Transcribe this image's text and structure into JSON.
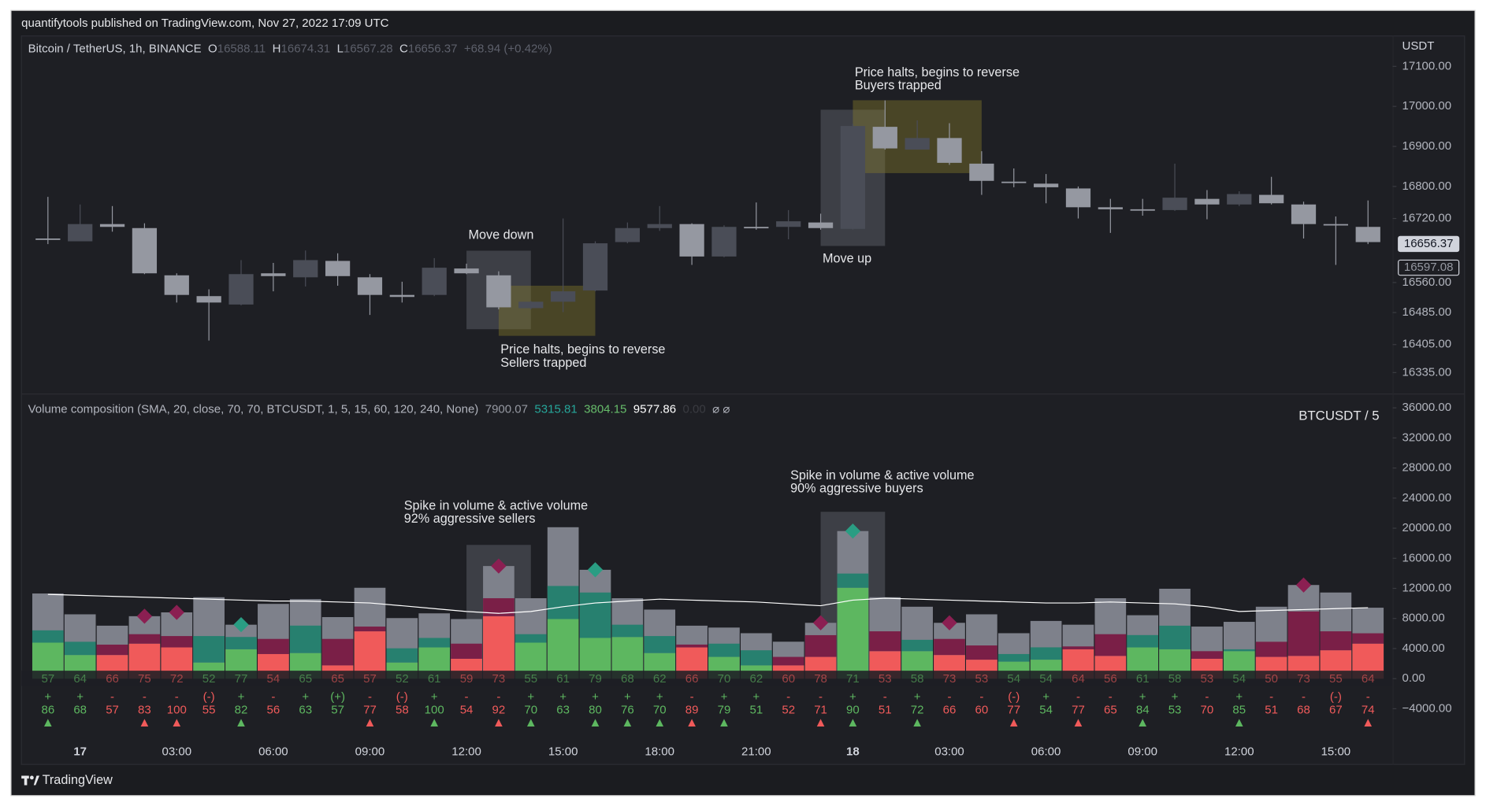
{
  "header": {
    "publisher": "quantifytools published on TradingView.com, Nov 27, 2022 17:09 UTC"
  },
  "footer": {
    "brand": "TradingView"
  },
  "chart_data": [
    {
      "type": "candlestick",
      "title": "Bitcoin / TetherUS, 1h, BINANCE",
      "ohlc_legend": [
        {
          "label": "O",
          "value": "16588.11"
        },
        {
          "label": "H",
          "value": "16674.31"
        },
        {
          "label": "L",
          "value": "16567.28"
        },
        {
          "label": "C",
          "value": "16656.37"
        }
      ],
      "change": "+68.94 (+0.42%)",
      "currency": "USDT",
      "open": [
        16670,
        16663,
        16706,
        16696,
        16578,
        16526,
        16505,
        16583,
        16573,
        16614,
        16573,
        16529,
        16529,
        16595,
        16578,
        16496,
        16512,
        16540,
        16661,
        16696,
        16706,
        16625,
        16699,
        16699,
        16710,
        16694,
        16949,
        16892,
        16921,
        16857,
        16812,
        16807,
        16795,
        16748,
        16743,
        16741,
        16769,
        16755,
        16779,
        16755,
        16706,
        16699
      ],
      "high": [
        16774,
        16755,
        16751,
        16708,
        16583,
        16543,
        16616,
        16609,
        16640,
        16633,
        16581,
        16562,
        16621,
        16607,
        16588,
        16514,
        16720,
        16663,
        16710,
        16751,
        16708,
        16703,
        16760,
        16741,
        16732,
        16956,
        17015,
        16965,
        16958,
        16888,
        16845,
        16831,
        16800,
        16769,
        16769,
        16857,
        16791,
        16788,
        16824,
        16762,
        16725,
        16765
      ],
      "low": [
        16656,
        16663,
        16687,
        16581,
        16510,
        16415,
        16503,
        16538,
        16550,
        16552,
        16479,
        16510,
        16526,
        16581,
        16493,
        16493,
        16486,
        16538,
        16658,
        16689,
        16604,
        16623,
        16692,
        16668,
        16692,
        16692,
        16892,
        16892,
        16854,
        16779,
        16798,
        16758,
        16720,
        16684,
        16727,
        16739,
        16718,
        16751,
        16755,
        16670,
        16604,
        16656
      ],
      "close": [
        16668,
        16706,
        16699,
        16583,
        16529,
        16510,
        16581,
        16576,
        16616,
        16576,
        16529,
        16524,
        16597,
        16583,
        16498,
        16512,
        16538,
        16658,
        16696,
        16706,
        16625,
        16699,
        16696,
        16713,
        16696,
        16951,
        16895,
        16921,
        16859,
        16814,
        16810,
        16798,
        16748,
        16743,
        16741,
        16772,
        16755,
        16781,
        16758,
        16706,
        16703,
        16661
      ],
      "up_color": "#4a4d57",
      "down_color": "#9598a1",
      "ylim": [
        16285,
        17176
      ],
      "yticks": [
        {
          "value": 17100,
          "label": "17100.00"
        },
        {
          "value": 17000,
          "label": "17000.00"
        },
        {
          "value": 16900,
          "label": "16900.00"
        },
        {
          "value": 16800,
          "label": "16800.00"
        },
        {
          "value": 16720,
          "label": "16720.00"
        },
        {
          "value": 16560,
          "label": "16560.00"
        },
        {
          "value": 16485,
          "label": "16485.00"
        },
        {
          "value": 16405,
          "label": "16405.00"
        },
        {
          "value": 16335,
          "label": "16335.00"
        }
      ],
      "price_markers": [
        16656.37,
        16597.08
      ],
      "annotations": [
        {
          "lines": [
            "Move down"
          ]
        },
        {
          "lines": [
            "Price halts, begins to reverse",
            "Sellers trapped"
          ]
        },
        {
          "lines": [
            "Move up"
          ]
        },
        {
          "lines": [
            "Price halts, begins to reverse",
            "Buyers trapped"
          ]
        }
      ]
    },
    {
      "type": "stacked_bar",
      "title": "Volume composition (SMA, 20, close, 70, 70, BTCUSDT, 1, 5, 15, 60, 120, 240, None)",
      "legend_values": [
        {
          "text": "7900.07",
          "color": "#9598a1"
        },
        {
          "text": "5315.81",
          "color": "#26a69a"
        },
        {
          "text": "3804.15",
          "color": "#66bb6a"
        },
        {
          "text": "9577.86",
          "color": "#ffffff"
        },
        {
          "text": "0.00",
          "color": "#3a3b41"
        },
        {
          "text": "⌀ ⌀",
          "color": "#b2b5be"
        }
      ],
      "symbol_label": "BTCUSDT / 5",
      "categories": [
        null,
        "17",
        null,
        null,
        "03:00",
        null,
        null,
        "06:00",
        null,
        null,
        "09:00",
        null,
        null,
        "12:00",
        null,
        null,
        "15:00",
        null,
        null,
        "18:00",
        null,
        null,
        "21:00",
        null,
        null,
        "18",
        null,
        null,
        "03:00",
        null,
        null,
        "06:00",
        null,
        null,
        "09:00",
        null,
        null,
        "12:00",
        null,
        null,
        "15:00",
        null
      ],
      "series": [
        {
          "color": "#7e818b",
          "values": [
            11320,
            8550,
            7040,
            8300,
            8810,
            10820,
            7170,
            9940,
            10570,
            8180,
            12080,
            8050,
            8680,
            7920,
            14970,
            10690,
            20130,
            14470,
            10690,
            9180,
            7040,
            6790,
            6040,
            4910,
            7420,
            19620,
            10820,
            9560,
            7420,
            8550,
            6040,
            7670,
            7170,
            10690,
            8430,
            11950,
            6920,
            7550,
            9560,
            12450,
            11450,
            9430
          ]
        },
        {
          "color": "#5db760",
          "values": [
            4780,
            3140,
            null,
            null,
            null,
            2140,
            3900,
            null,
            3400,
            null,
            null,
            2140,
            4150,
            null,
            null,
            4780,
            7920,
            5410,
            5530,
            3400,
            null,
            2890,
            1760,
            null,
            null,
            12080,
            null,
            3650,
            null,
            null,
            2260,
            2520,
            null,
            null,
            4150,
            3900,
            null,
            3650,
            null,
            null,
            null,
            null
          ]
        },
        {
          "color": "#27806f",
          "values": [
            1640,
            1760,
            null,
            null,
            null,
            3520,
            1640,
            null,
            3650,
            null,
            null,
            1890,
            1260,
            null,
            null,
            1130,
            4400,
            6040,
            1640,
            2260,
            null,
            1760,
            2010,
            null,
            null,
            1890,
            null,
            1510,
            null,
            null,
            1010,
            1640,
            null,
            null,
            1640,
            3140,
            null,
            250,
            null,
            null,
            null,
            null
          ]
        },
        {
          "color": "#f05a5a",
          "values": [
            null,
            null,
            3140,
            4650,
            4150,
            null,
            null,
            3270,
            null,
            1760,
            6290,
            null,
            null,
            2640,
            8300,
            null,
            null,
            null,
            null,
            null,
            4150,
            null,
            null,
            1760,
            2890,
            null,
            3650,
            null,
            3140,
            2520,
            null,
            null,
            3900,
            3020,
            null,
            null,
            2640,
            null,
            2890,
            3020,
            3770,
            4650
          ]
        },
        {
          "color": "#7a1f47",
          "values": [
            null,
            null,
            1380,
            1260,
            1510,
            null,
            null,
            2010,
            null,
            3520,
            630,
            null,
            null,
            2010,
            2390,
            null,
            null,
            null,
            null,
            null,
            380,
            null,
            null,
            1130,
            2890,
            null,
            2640,
            null,
            2140,
            1890,
            null,
            null,
            380,
            2890,
            null,
            null,
            1010,
            null,
            2010,
            5910,
            2520,
            1380
          ]
        }
      ],
      "sma": {
        "color": "#ffffff",
        "values": [
          11200,
          11070,
          10940,
          10820,
          10690,
          10570,
          10440,
          10310,
          10310,
          10190,
          10060,
          9690,
          9310,
          8930,
          8680,
          8930,
          9560,
          10060,
          10310,
          10570,
          10440,
          10310,
          10190,
          9940,
          9690,
          10440,
          10690,
          10570,
          10440,
          10310,
          10190,
          10060,
          10060,
          10190,
          10060,
          9940,
          9560,
          8930,
          9060,
          9180,
          9310,
          9430
        ]
      },
      "diamond": [
        false,
        false,
        false,
        true,
        true,
        false,
        true,
        false,
        false,
        false,
        false,
        false,
        false,
        false,
        true,
        false,
        false,
        true,
        false,
        false,
        false,
        false,
        false,
        false,
        true,
        true,
        false,
        false,
        true,
        false,
        false,
        false,
        false,
        false,
        false,
        false,
        false,
        false,
        false,
        true,
        false,
        false
      ],
      "ratio_row": [
        57,
        64,
        66,
        75,
        72,
        52,
        77,
        54,
        65,
        65,
        57,
        52,
        61,
        59,
        73,
        55,
        61,
        79,
        68,
        62,
        66,
        70,
        62,
        60,
        78,
        71,
        53,
        58,
        73,
        53,
        54,
        54,
        64,
        56,
        61,
        58,
        53,
        54,
        50,
        73,
        55,
        64
      ],
      "side_row": [
        "+",
        "+",
        "-",
        "-",
        "-",
        "(-)",
        "+",
        "-",
        "+",
        "(+)",
        "-",
        "(-)",
        "+",
        "-",
        "-",
        "+",
        "+",
        "+",
        "+",
        "+",
        "-",
        "+",
        "+",
        "-",
        "-",
        "+",
        "-",
        "+",
        "-",
        "-",
        "(-)",
        "+",
        "-",
        "-",
        "+",
        "+",
        "-",
        "+",
        "-",
        "-",
        "(-)",
        "-"
      ],
      "percent_row": [
        86,
        68,
        57,
        83,
        100,
        55,
        82,
        56,
        63,
        57,
        77,
        58,
        100,
        54,
        92,
        70,
        63,
        80,
        76,
        70,
        89,
        79,
        51,
        52,
        71,
        90,
        51,
        72,
        66,
        60,
        77,
        54,
        77,
        65,
        84,
        53,
        70,
        85,
        51,
        68,
        67,
        74
      ],
      "signal": [
        true,
        false,
        false,
        true,
        true,
        false,
        true,
        false,
        false,
        false,
        true,
        false,
        true,
        false,
        true,
        true,
        false,
        true,
        true,
        true,
        true,
        true,
        false,
        false,
        true,
        true,
        false,
        true,
        false,
        false,
        true,
        false,
        true,
        false,
        true,
        false,
        false,
        true,
        false,
        false,
        false,
        true
      ],
      "ylim": [
        -11400,
        37400
      ],
      "yticks": [
        {
          "value": 36000,
          "label": "36000.00"
        },
        {
          "value": 32000,
          "label": "32000.00"
        },
        {
          "value": 28000,
          "label": "28000.00"
        },
        {
          "value": 24000,
          "label": "24000.00"
        },
        {
          "value": 20000,
          "label": "20000.00"
        },
        {
          "value": 16000,
          "label": "16000.00"
        },
        {
          "value": 12000,
          "label": "12000.00"
        },
        {
          "value": 8000,
          "label": "8000.00"
        },
        {
          "value": 4000,
          "label": "4000.00"
        },
        {
          "value": 0,
          "label": "0.00"
        },
        {
          "value": -4000,
          "label": "−4000.00"
        }
      ],
      "annotations": [
        {
          "lines": [
            "Spike in volume & active volume",
            "92% aggressive sellers"
          ]
        },
        {
          "lines": [
            "Spike in volume & active volume",
            "90% aggressive buyers"
          ]
        }
      ]
    }
  ]
}
